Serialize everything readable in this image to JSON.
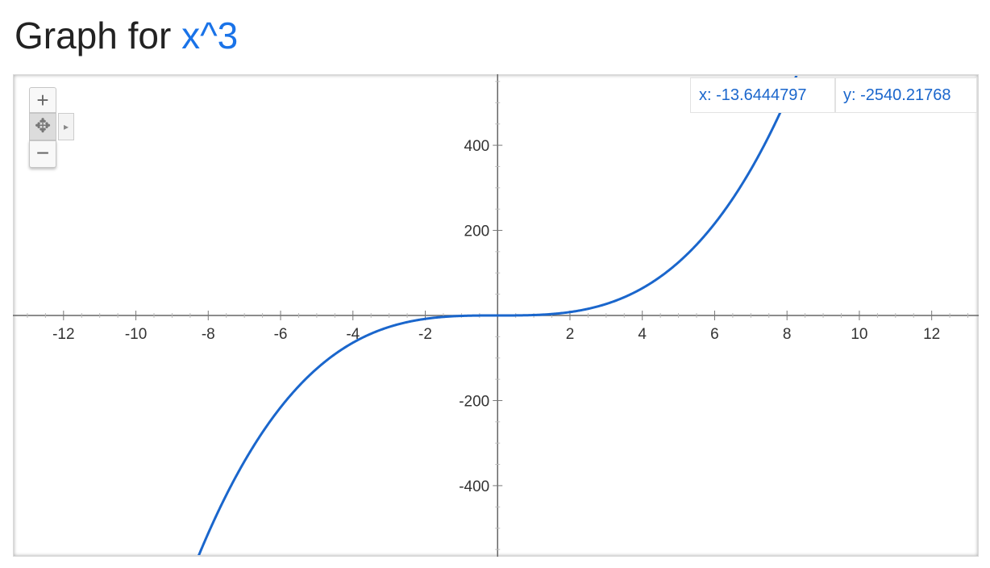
{
  "heading": {
    "prefix": "Graph for",
    "function": "x^3"
  },
  "readout": {
    "x_label": "x: -13.6444797",
    "y_label": "y: -2540.21768"
  },
  "controls": {
    "zoom_in": "+",
    "pan": "✥",
    "zoom_out": "−",
    "expand": "▸"
  },
  "colors": {
    "curve": "#1a66cc",
    "axis": "#666666",
    "link": "#1a73e8"
  },
  "chart_data": {
    "type": "line",
    "function": "x^3",
    "xlim": [
      -13.4,
      13.3
    ],
    "ylim": [
      -567,
      567
    ],
    "x_ticks": [
      -12,
      -10,
      -8,
      -6,
      -4,
      -2,
      2,
      4,
      6,
      8,
      10,
      12
    ],
    "y_ticks": [
      -400,
      -200,
      200,
      400
    ],
    "x_minor_step": 0.5,
    "y_minor_step": 50,
    "grid": false,
    "legend": "none",
    "series": [
      {
        "expression": "x^3"
      }
    ]
  }
}
